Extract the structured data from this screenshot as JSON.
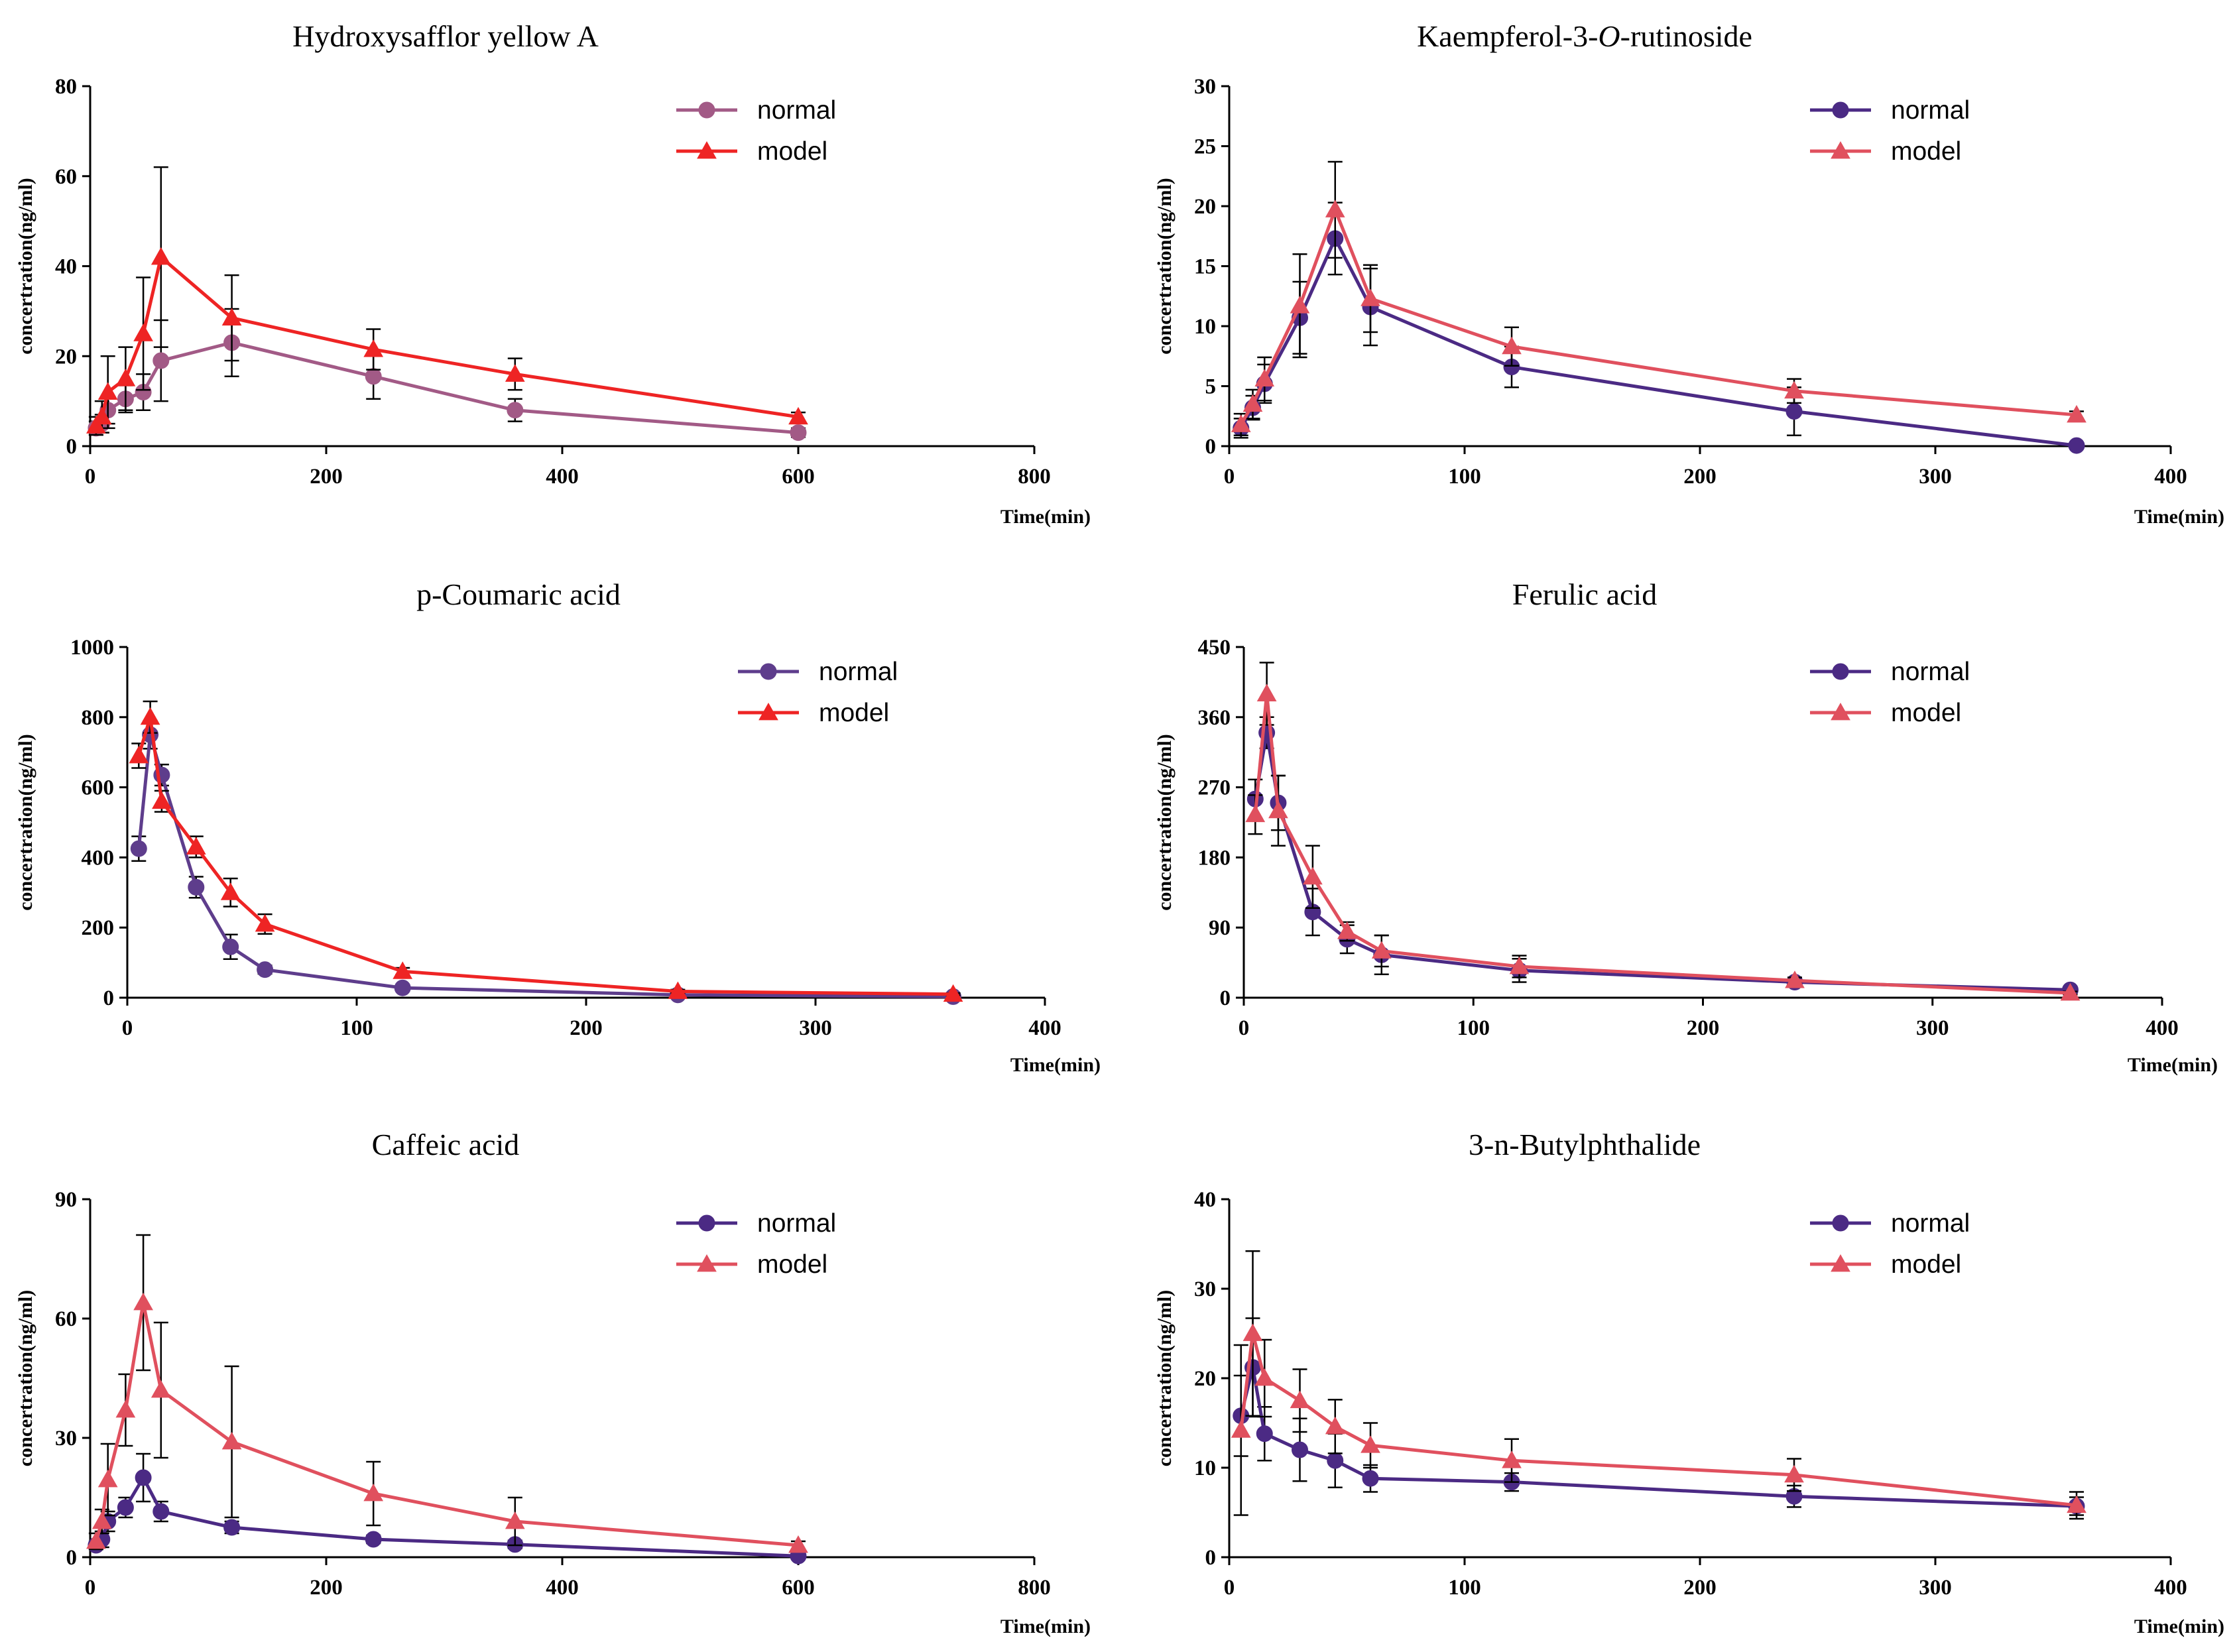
{
  "chart_data": [
    {
      "type": "line",
      "title": "Hydroxysafflor yellow A",
      "title_segments": [
        {
          "text": "Hydroxysafflor yellow A",
          "italic": false
        }
      ],
      "xlabel": "Time(min)",
      "ylabel": "concertration(ng/ml)",
      "xlim": [
        0,
        800
      ],
      "ylim": [
        0,
        80
      ],
      "xticks": [
        0,
        200,
        400,
        600,
        800
      ],
      "yticks": [
        0,
        20,
        40,
        60,
        80
      ],
      "legend_position": "top-right",
      "series": [
        {
          "name": "normal",
          "marker": "circle",
          "color": "#a25a86",
          "x": [
            5,
            10,
            15,
            30,
            45,
            60,
            120,
            240,
            360,
            600
          ],
          "y": [
            4,
            5,
            8,
            10.5,
            12,
            19,
            23,
            15.5,
            8,
            3
          ],
          "err": [
            1.5,
            2,
            3,
            3,
            4,
            9,
            7.5,
            5,
            2.5,
            1
          ]
        },
        {
          "name": "model",
          "marker": "triangle",
          "color": "#ee2424",
          "x": [
            5,
            10,
            15,
            30,
            45,
            60,
            120,
            240,
            360,
            600
          ],
          "y": [
            4.5,
            6.5,
            12,
            15,
            25,
            42,
            28.5,
            21.5,
            16,
            6.5
          ],
          "err": [
            2,
            3.5,
            8,
            7,
            12.5,
            20,
            9.5,
            4.5,
            3.5,
            1
          ]
        }
      ]
    },
    {
      "type": "line",
      "title": "Kaempferol-3-O-rutinoside",
      "title_segments": [
        {
          "text": "Kaempferol-3-",
          "italic": false
        },
        {
          "text": "O",
          "italic": true
        },
        {
          "text": "-rutinoside",
          "italic": false
        }
      ],
      "xlabel": "Time(min)",
      "ylabel": "concertration(ng/ml)",
      "xlim": [
        0,
        400
      ],
      "ylim": [
        0,
        30
      ],
      "xticks": [
        0,
        100,
        200,
        300,
        400
      ],
      "yticks": [
        0,
        5,
        10,
        15,
        20,
        25,
        30
      ],
      "legend_position": "top-right",
      "series": [
        {
          "name": "normal",
          "marker": "circle",
          "color": "#4b2a84",
          "x": [
            5,
            10,
            15,
            30,
            45,
            60,
            120,
            240,
            360
          ],
          "y": [
            1.5,
            3.2,
            5.2,
            10.7,
            17.3,
            11.6,
            6.6,
            2.9,
            0.05
          ],
          "err": [
            0.8,
            1.0,
            1.6,
            3.0,
            3.0,
            3.2,
            1.7,
            2.0,
            0.1
          ]
        },
        {
          "name": "model",
          "marker": "triangle",
          "color": "#e0505e",
          "x": [
            5,
            10,
            15,
            30,
            45,
            60,
            120,
            240,
            360
          ],
          "y": [
            1.8,
            3.5,
            5.6,
            11.7,
            19.7,
            12.3,
            8.3,
            4.6,
            2.6
          ],
          "err": [
            0.9,
            1.2,
            1.8,
            4.3,
            4.0,
            2.8,
            1.6,
            1.0,
            0.3
          ]
        }
      ]
    },
    {
      "type": "line",
      "title": "p-Coumaric acid",
      "title_segments": [
        {
          "text": "p-Coumaric acid",
          "italic": false
        }
      ],
      "xlabel": "Time(min)",
      "ylabel": "concertration(ng/ml)",
      "xlim": [
        0,
        400
      ],
      "ylim": [
        0,
        1000
      ],
      "xticks": [
        0,
        100,
        200,
        300,
        400
      ],
      "yticks": [
        0,
        200,
        400,
        600,
        800,
        1000
      ],
      "legend_position": "top-right",
      "series": [
        {
          "name": "normal",
          "marker": "circle",
          "color": "#5e3d8c",
          "x": [
            5,
            10,
            15,
            30,
            45,
            60,
            120,
            240,
            360
          ],
          "y": [
            425,
            750,
            635,
            315,
            145,
            80,
            28,
            8,
            3
          ],
          "err": [
            35,
            40,
            30,
            30,
            35,
            12,
            6,
            3,
            2
          ]
        },
        {
          "name": "model",
          "marker": "triangle",
          "color": "#ee2424",
          "x": [
            5,
            10,
            15,
            30,
            45,
            60,
            120,
            240,
            360
          ],
          "y": [
            690,
            800,
            560,
            430,
            300,
            210,
            75,
            18,
            10
          ],
          "err": [
            35,
            45,
            30,
            30,
            40,
            28,
            10,
            5,
            3
          ]
        }
      ]
    },
    {
      "type": "line",
      "title": "Ferulic acid",
      "title_segments": [
        {
          "text": "Ferulic acid",
          "italic": false
        }
      ],
      "xlabel": "Time(min)",
      "ylabel": "concertration(ng/ml)",
      "xlim": [
        0,
        400
      ],
      "ylim": [
        0,
        450
      ],
      "xticks": [
        0,
        100,
        200,
        300,
        400
      ],
      "yticks": [
        0,
        90,
        180,
        270,
        360,
        450
      ],
      "legend_position": "top-right",
      "series": [
        {
          "name": "normal",
          "marker": "circle",
          "color": "#4b2a84",
          "x": [
            5,
            10,
            15,
            30,
            45,
            60,
            120,
            240,
            360
          ],
          "y": [
            255,
            340,
            250,
            110,
            75,
            55,
            35,
            20,
            10
          ],
          "err": [
            25,
            20,
            35,
            30,
            18,
            25,
            15,
            4,
            3
          ]
        },
        {
          "name": "model",
          "marker": "triangle",
          "color": "#e0505e",
          "x": [
            5,
            10,
            15,
            30,
            45,
            60,
            120,
            240,
            360
          ],
          "y": [
            235,
            390,
            240,
            155,
            85,
            60,
            40,
            22,
            6
          ],
          "err": [
            25,
            40,
            45,
            40,
            12,
            20,
            14,
            4,
            2
          ]
        }
      ]
    },
    {
      "type": "line",
      "title": "Caffeic acid",
      "title_segments": [
        {
          "text": "Caffeic acid",
          "italic": false
        }
      ],
      "xlabel": "Time(min)",
      "ylabel": "concertration(ng/ml)",
      "xlim": [
        0,
        800
      ],
      "ylim": [
        0,
        90
      ],
      "xticks": [
        0,
        200,
        400,
        600,
        800
      ],
      "yticks": [
        0,
        30,
        60,
        90
      ],
      "legend_position": "top-right",
      "series": [
        {
          "name": "normal",
          "marker": "circle",
          "color": "#4b2a84",
          "x": [
            5,
            10,
            15,
            30,
            45,
            60,
            120,
            240,
            360,
            600
          ],
          "y": [
            3,
            4.5,
            9,
            12.5,
            20,
            11.5,
            7.5,
            4.5,
            3.2,
            0.3
          ],
          "err": [
            1,
            2,
            2.5,
            2.5,
            6,
            2.5,
            1.5,
            1,
            1,
            0.3
          ]
        },
        {
          "name": "model",
          "marker": "triangle",
          "color": "#e0505e",
          "x": [
            5,
            10,
            15,
            30,
            45,
            60,
            120,
            240,
            360,
            600
          ],
          "y": [
            4,
            9,
            19.5,
            37,
            64,
            42,
            29,
            16,
            9,
            3
          ],
          "err": [
            2,
            3,
            9,
            9,
            17,
            17,
            19,
            8,
            6,
            1
          ]
        }
      ]
    },
    {
      "type": "line",
      "title": "3-n-Butylphthalide",
      "title_segments": [
        {
          "text": "3-n-Butylphthalide",
          "italic": false
        }
      ],
      "xlabel": "Time(min)",
      "ylabel": "concertration(ng/ml)",
      "xlim": [
        0,
        400
      ],
      "ylim": [
        0,
        40
      ],
      "xticks": [
        0,
        100,
        200,
        300,
        400
      ],
      "yticks": [
        0,
        10,
        20,
        30,
        40
      ],
      "legend_position": "top-right",
      "series": [
        {
          "name": "normal",
          "marker": "circle",
          "color": "#4b2a84",
          "x": [
            5,
            10,
            15,
            30,
            45,
            60,
            120,
            240,
            360
          ],
          "y": [
            15.8,
            21.2,
            13.8,
            12,
            10.8,
            8.8,
            8.4,
            6.8,
            5.7
          ],
          "err": [
            4.5,
            5.5,
            3,
            3.5,
            3,
            1.5,
            1,
            1.2,
            1
          ]
        },
        {
          "name": "model",
          "marker": "triangle",
          "color": "#e0505e",
          "x": [
            5,
            10,
            15,
            30,
            45,
            60,
            120,
            240,
            360
          ],
          "y": [
            14.2,
            25,
            20,
            17.5,
            14.6,
            12.5,
            10.8,
            9.2,
            5.8
          ],
          "err": [
            9.5,
            9.2,
            4.3,
            3.5,
            3,
            2.5,
            2.4,
            1.8,
            1.5
          ]
        }
      ]
    }
  ]
}
